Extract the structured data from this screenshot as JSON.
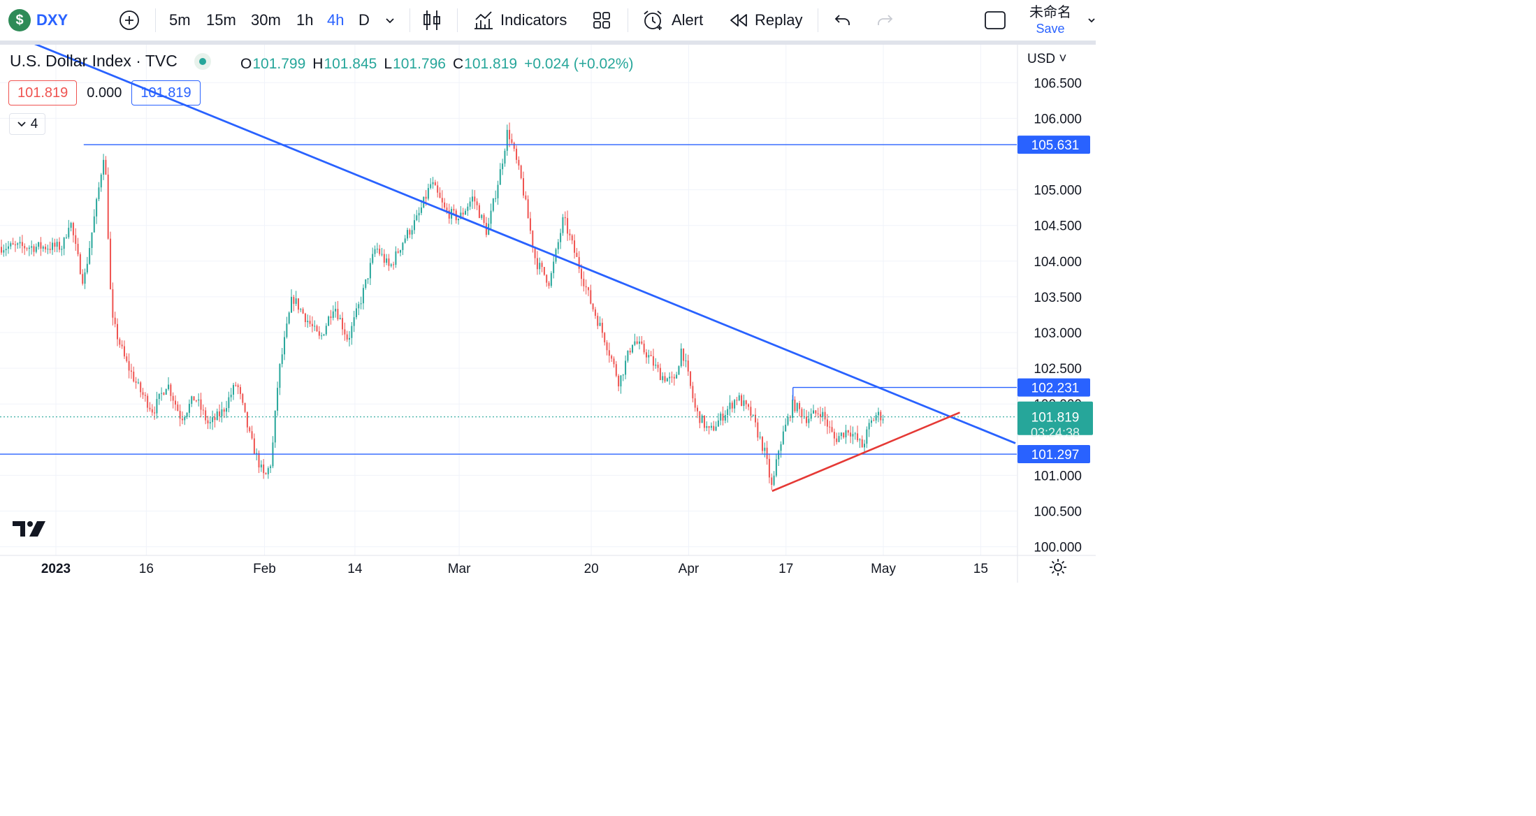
{
  "toolbar": {
    "symbol_badge": "$",
    "symbol": "DXY",
    "intervals": [
      "5m",
      "15m",
      "30m",
      "1h",
      "4h",
      "D"
    ],
    "active_interval": "4h",
    "indicators_label": "Indicators",
    "alert_label": "Alert",
    "replay_label": "Replay",
    "layout_name": "未命名",
    "save_label": "Save"
  },
  "legend": {
    "title": "U.S. Dollar Index · TVC",
    "open_label": "O",
    "open": "101.799",
    "high_label": "H",
    "high": "101.845",
    "low_label": "L",
    "low": "101.796",
    "close_label": "C",
    "close": "101.819",
    "change": "+0.024 (+0.02%)",
    "sell_price": "101.819",
    "spread": "0.000",
    "buy_price": "101.819",
    "indicator_count": "4"
  },
  "colors": {
    "up": "#26a69a",
    "down": "#ef5350",
    "line_blue": "#2962ff",
    "line_red": "#e53935",
    "grid": "#f0f3fa"
  },
  "chart_data": {
    "type": "candlestick",
    "symbol": "DXY",
    "currency": "USD",
    "ylim": [
      99.95,
      106.85
    ],
    "y_ticks": [
      "106.500",
      "106.000",
      "105.000",
      "104.500",
      "104.000",
      "103.500",
      "103.000",
      "102.500",
      "102.000",
      "101.000",
      "100.500",
      "100.000"
    ],
    "x_ticks": [
      "2023",
      "16",
      "Feb",
      "14",
      "Mar",
      "20",
      "Apr",
      "17",
      "May",
      "15"
    ],
    "path_points": [
      [
        "2023-01-03",
        104.2
      ],
      [
        "2023-01-04",
        104.6
      ],
      [
        "2023-01-05",
        104.1
      ],
      [
        "2023-01-06",
        103.7
      ],
      [
        "2023-01-08",
        104.9
      ],
      [
        "2023-01-09",
        105.6
      ],
      [
        "2023-01-10",
        103.2
      ],
      [
        "2023-01-12",
        102.6
      ],
      [
        "2023-01-14",
        102.2
      ],
      [
        "2023-01-16",
        101.9
      ],
      [
        "2023-01-18",
        102.3
      ],
      [
        "2023-01-20",
        101.8
      ],
      [
        "2023-01-22",
        102.1
      ],
      [
        "2023-01-24",
        101.7
      ],
      [
        "2023-01-26",
        101.9
      ],
      [
        "2023-01-28",
        102.3
      ],
      [
        "2023-01-30",
        101.5
      ],
      [
        "2023-02-01",
        100.95
      ],
      [
        "2023-02-02",
        101.2
      ],
      [
        "2023-02-03",
        102.4
      ],
      [
        "2023-02-05",
        103.5
      ],
      [
        "2023-02-07",
        103.2
      ],
      [
        "2023-02-09",
        102.9
      ],
      [
        "2023-02-11",
        103.4
      ],
      [
        "2023-02-13",
        102.9
      ],
      [
        "2023-02-15",
        103.5
      ],
      [
        "2023-02-17",
        104.2
      ],
      [
        "2023-02-19",
        103.9
      ],
      [
        "2023-02-21",
        104.3
      ],
      [
        "2023-02-23",
        104.6
      ],
      [
        "2023-02-25",
        105.1
      ],
      [
        "2023-02-27",
        104.7
      ],
      [
        "2023-03-01",
        104.6
      ],
      [
        "2023-03-03",
        104.9
      ],
      [
        "2023-03-05",
        104.4
      ],
      [
        "2023-03-07",
        105.3
      ],
      [
        "2023-03-08",
        105.85
      ],
      [
        "2023-03-10",
        105.1
      ],
      [
        "2023-03-12",
        104.0
      ],
      [
        "2023-03-14",
        103.7
      ],
      [
        "2023-03-16",
        104.6
      ],
      [
        "2023-03-18",
        104.0
      ],
      [
        "2023-03-20",
        103.4
      ],
      [
        "2023-03-22",
        102.9
      ],
      [
        "2023-03-24",
        102.3
      ],
      [
        "2023-03-26",
        102.9
      ],
      [
        "2023-03-28",
        102.7
      ],
      [
        "2023-03-30",
        102.4
      ],
      [
        "2023-04-01",
        102.3
      ],
      [
        "2023-04-02",
        102.8
      ],
      [
        "2023-04-04",
        101.9
      ],
      [
        "2023-04-06",
        101.6
      ],
      [
        "2023-04-08",
        101.85
      ],
      [
        "2023-04-10",
        102.1
      ],
      [
        "2023-04-12",
        101.85
      ],
      [
        "2023-04-14",
        101.3
      ],
      [
        "2023-04-15",
        100.8
      ],
      [
        "2023-04-16",
        101.4
      ],
      [
        "2023-04-18",
        102.0
      ],
      [
        "2023-04-20",
        101.8
      ],
      [
        "2023-04-22",
        101.9
      ],
      [
        "2023-04-24",
        101.5
      ],
      [
        "2023-04-26",
        101.65
      ],
      [
        "2023-04-28",
        101.4
      ],
      [
        "2023-04-29",
        101.7
      ],
      [
        "2023-04-30",
        101.85
      ],
      [
        "2023-05-01",
        101.82
      ]
    ],
    "drawings": [
      {
        "name": "descending-trendline",
        "color": "blue",
        "from": [
          "2022-12-26",
          107.2
        ],
        "to": [
          "2023-05-20",
          101.45
        ]
      },
      {
        "name": "resistance-line",
        "color": "blue",
        "price": 105.631
      },
      {
        "name": "range-top-line",
        "color": "blue",
        "price": 102.231
      },
      {
        "name": "support-line",
        "color": "blue",
        "price": 101.297
      },
      {
        "name": "rising-trendline",
        "color": "red",
        "from": [
          "2023-04-15",
          100.78
        ],
        "to": [
          "2023-05-12",
          101.88
        ]
      }
    ],
    "price_labels": [
      {
        "value": "105.631",
        "kind": "line"
      },
      {
        "value": "102.231",
        "kind": "line"
      },
      {
        "value": "101.819",
        "kind": "last",
        "countdown": "03:24:38"
      },
      {
        "value": "101.297",
        "kind": "line"
      }
    ],
    "last_price": 101.819
  }
}
